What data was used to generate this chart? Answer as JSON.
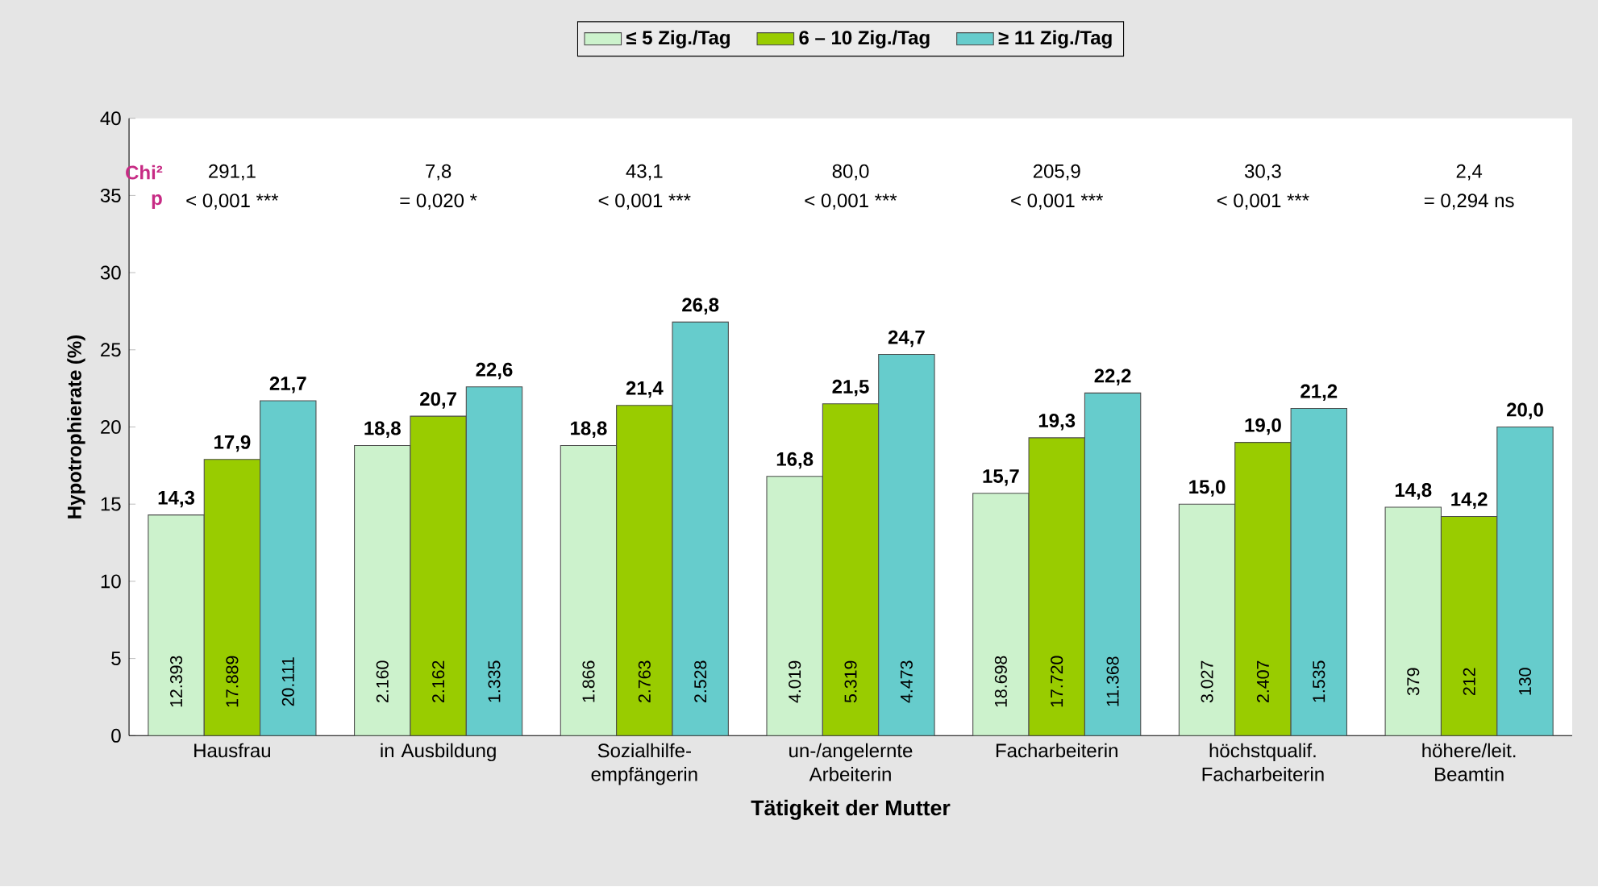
{
  "chart_data": {
    "type": "bar",
    "xlabel": "Tätigkeit der Mutter",
    "ylabel": "Hypotrophierate (%)",
    "categories": [
      "Hausfrau",
      "in Ausbildung",
      "Sozialhilfe- empfängerin",
      "un-/angelernte Arbeiterin",
      "Facharbeiterin",
      "höchstqualif. Facharbeiterin",
      "höhere/leit. Beamtin"
    ],
    "series": [
      {
        "name": "≤ 5 Zig./Tag",
        "color": "#ccf2cc",
        "values": [
          14.3,
          18.8,
          18.8,
          16.8,
          15.7,
          15.0,
          14.8
        ],
        "value_labels": [
          "14,3",
          "18,8",
          "18,8",
          "16,8",
          "15,7",
          "15,0",
          "14,8"
        ]
      },
      {
        "name": "6 – 10 Zig./Tag",
        "color": "#99cc00",
        "values": [
          17.9,
          20.7,
          21.4,
          21.5,
          19.3,
          19.0,
          14.2
        ],
        "value_labels": [
          "17,9",
          "20,7",
          "21,4",
          "21,5",
          "19,3",
          "19,0",
          "14,2"
        ]
      },
      {
        "name": "≥ 11 Zig./Tag",
        "color": "#66cccc",
        "values": [
          21.7,
          22.6,
          26.8,
          24.7,
          22.2,
          21.2,
          20.0
        ],
        "value_labels": [
          "21,7",
          "22,6",
          "26,8",
          "24,7",
          "22,2",
          "21,2",
          "20,0"
        ]
      }
    ],
    "ylim": [
      0,
      40
    ],
    "yticks": [
      0,
      5,
      10,
      15,
      20,
      25,
      30,
      35,
      40
    ],
    "legend": "top",
    "grid": false,
    "annotations": [
      "Chi²",
      "p",
      "291,1",
      "< 0,001 ***",
      "7,8",
      "= 0,020 *",
      "43,1",
      "< 0,001 ***",
      "80,0",
      "< 0,001 ***",
      "205,9",
      "< 0,001 ***",
      "30,3",
      "< 0,001 ***",
      "2,4",
      "= 0,294 ns",
      "12.393",
      "17.889",
      "20.111",
      "2.160",
      "2.162",
      "1.335",
      "1.866",
      "2.763",
      "2.528",
      "4.019",
      "5.319",
      "4.473",
      "18.698",
      "17.720",
      "11.368",
      "3.027",
      "2.407",
      "1.535",
      "379",
      "212",
      "130"
    ]
  }
}
